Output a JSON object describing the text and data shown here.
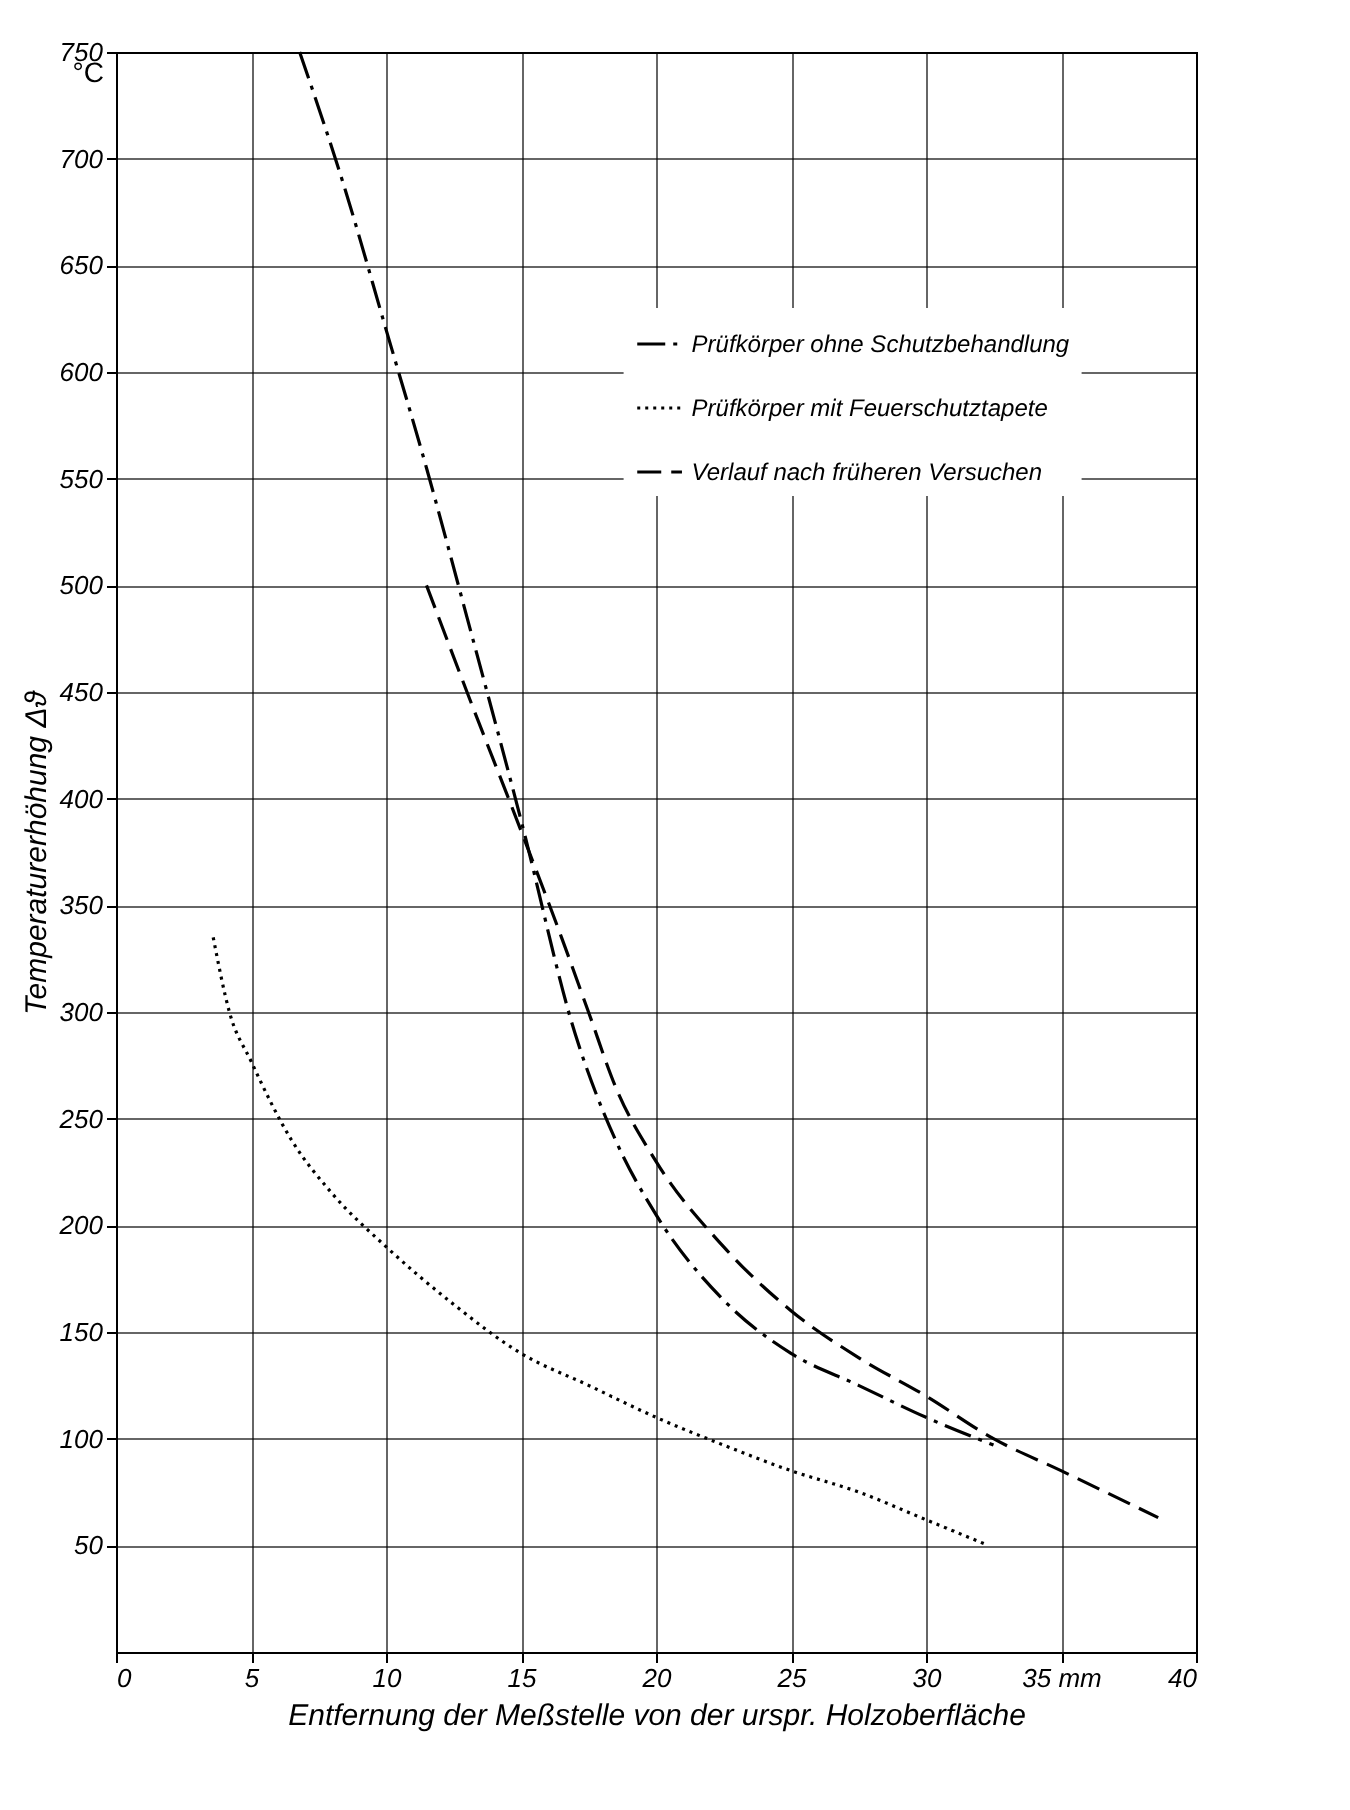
{
  "chart_data": {
    "type": "line",
    "xlabel": "Entfernung der Meßstelle von der urspr. Holzoberfläche",
    "ylabel": "Temperaturerhöhung Δϑ",
    "annotations": [
      "°C"
    ],
    "xlim": [
      0,
      40
    ],
    "ylim": [
      0,
      750
    ],
    "xticks": [
      0,
      5,
      10,
      15,
      20,
      25,
      30,
      {
        "value": 35,
        "label": "35 mm"
      },
      40
    ],
    "yticks": [
      50,
      100,
      150,
      200,
      250,
      300,
      350,
      400,
      450,
      500,
      550,
      600,
      650,
      700,
      750
    ],
    "grid": true,
    "legend": "right",
    "marker": "none",
    "series": [
      {
        "name": "Prüfkörper ohne Schutzbehandlung",
        "color": "#000000",
        "line_style": "dashdot",
        "x": [
          6.8,
          8.5,
          10,
          11.5,
          13,
          15,
          17,
          18.5,
          20,
          22.5,
          25,
          27.5,
          30,
          32.5
        ],
        "values": [
          750,
          685,
          620,
          555,
          485,
          390,
          290,
          240,
          205,
          165,
          140,
          125,
          110,
          97
        ]
      },
      {
        "name": "Prüfkörper mit Feuerschutztapete",
        "color": "#000000",
        "line_style": "dotted",
        "x": [
          3.6,
          4.2,
          5,
          6.5,
          8,
          10,
          12.5,
          15,
          17.5,
          20,
          22.5,
          25,
          27.5,
          30,
          32.3
        ],
        "values": [
          335,
          300,
          277,
          240,
          215,
          190,
          163,
          140,
          125,
          110,
          97,
          85,
          75,
          62,
          50
        ]
      },
      {
        "name": "Verlauf nach früheren Versuchen",
        "color": "#000000",
        "line_style": "dashed",
        "x": [
          11.5,
          13,
          15,
          16.5,
          17.5,
          18.5,
          20,
          22.5,
          25,
          27.5,
          30,
          32.5,
          35,
          38.6
        ],
        "values": [
          500,
          450,
          385,
          335,
          300,
          265,
          230,
          190,
          160,
          138,
          120,
          100,
          85,
          63
        ]
      }
    ]
  }
}
